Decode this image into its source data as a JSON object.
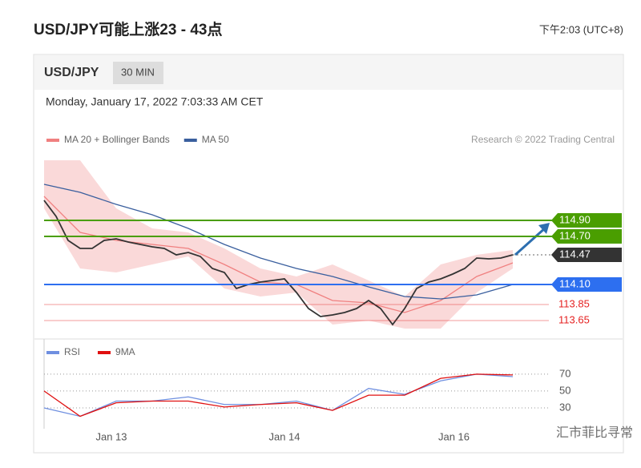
{
  "header": {
    "title": "USD/JPY可能上涨23 - 43点",
    "time": "下午2:03 (UTC+8)"
  },
  "panel": {
    "symbol": "USD/JPY",
    "interval": "30 MIN",
    "timestamp": "Monday, January 17, 2022 7:03:33 AM CET",
    "credit": "Research © 2022 Trading Central"
  },
  "watermark": "汇市菲比寻常",
  "chart_data": [
    {
      "type": "line",
      "xlim": [
        0,
        42
      ],
      "ylim": [
        113.45,
        115.75
      ],
      "price": {
        "color": "#333333",
        "x": [
          0,
          1,
          2,
          3,
          4,
          5,
          6,
          7,
          8,
          9,
          10,
          11,
          12,
          13,
          14,
          15,
          16,
          17,
          18,
          19,
          20,
          21,
          22,
          23,
          24,
          25,
          26,
          27,
          28,
          29,
          30,
          31,
          32,
          33,
          34,
          35,
          36,
          37,
          38,
          39
        ],
        "values": [
          115.15,
          114.95,
          114.65,
          114.55,
          114.55,
          114.65,
          114.67,
          114.63,
          114.6,
          114.57,
          114.55,
          114.47,
          114.5,
          114.45,
          114.3,
          114.25,
          114.05,
          114.1,
          114.13,
          114.15,
          114.17,
          114.0,
          113.8,
          113.7,
          113.72,
          113.75,
          113.8,
          113.9,
          113.8,
          113.6,
          113.8,
          114.05,
          114.13,
          114.17,
          114.23,
          114.3,
          114.43,
          114.42,
          114.43,
          114.47
        ]
      },
      "series": [
        {
          "name": "MA 20 + Bollinger Bands",
          "color": "#f08080",
          "x": [
            0,
            3,
            6,
            9,
            12,
            15,
            18,
            21,
            24,
            27,
            30,
            33,
            36,
            39
          ],
          "values": [
            115.2,
            114.75,
            114.65,
            114.6,
            114.55,
            114.35,
            114.13,
            114.1,
            113.9,
            113.87,
            113.75,
            113.9,
            114.2,
            114.37
          ],
          "upper": [
            115.65,
            115.65,
            115.05,
            114.8,
            114.75,
            114.55,
            114.3,
            114.2,
            114.35,
            114.15,
            113.95,
            114.35,
            114.47,
            114.53
          ],
          "lower": [
            115.05,
            114.3,
            114.25,
            114.35,
            114.45,
            114.05,
            113.95,
            114.0,
            113.6,
            113.65,
            113.55,
            113.55,
            114.0,
            114.3
          ]
        },
        {
          "name": "MA 50",
          "color": "#3a5f9e",
          "x": [
            0,
            3,
            6,
            9,
            12,
            15,
            18,
            21,
            24,
            27,
            30,
            33,
            36,
            39
          ],
          "values": [
            115.35,
            115.25,
            115.1,
            114.97,
            114.8,
            114.6,
            114.43,
            114.3,
            114.2,
            114.07,
            113.95,
            113.92,
            113.97,
            114.1
          ]
        }
      ],
      "levels": [
        {
          "value": 114.9,
          "label": "114.90",
          "color": "#4a9e00",
          "style": "box"
        },
        {
          "value": 114.7,
          "label": "114.70",
          "color": "#4a9e00",
          "style": "box"
        },
        {
          "value": 114.47,
          "label": "114.47",
          "color": "#333333",
          "style": "current"
        },
        {
          "value": 114.1,
          "label": "114.10",
          "color": "#2d6ff0",
          "style": "box"
        },
        {
          "value": 113.85,
          "label": "113.85",
          "color": "#e52222",
          "style": "text"
        },
        {
          "value": 113.65,
          "label": "113.65",
          "color": "#e52222",
          "style": "text"
        }
      ]
    },
    {
      "type": "line",
      "xlim": [
        0,
        42
      ],
      "ylim": [
        10,
        86
      ],
      "yticks": [
        70,
        50,
        30
      ],
      "xticks": [
        {
          "value": 5.6,
          "label": "Jan 13"
        },
        {
          "value": 20,
          "label": "Jan 14"
        },
        {
          "value": 34.1,
          "label": "Jan 16"
        }
      ],
      "series": [
        {
          "name": "RSI",
          "color": "#6f8fe0",
          "x": [
            0,
            3,
            6,
            9,
            12,
            15,
            18,
            21,
            24,
            27,
            30,
            33,
            36,
            39
          ],
          "values": [
            30,
            20,
            38,
            38,
            43,
            34,
            34,
            38,
            27,
            53,
            46,
            62,
            70,
            67
          ]
        },
        {
          "name": "9MA",
          "color": "#e01010",
          "x": [
            0,
            3,
            6,
            9,
            12,
            15,
            18,
            21,
            24,
            27,
            30,
            33,
            36,
            39
          ],
          "values": [
            50,
            20,
            36,
            38,
            38,
            31,
            34,
            36,
            27,
            45,
            45,
            65,
            70,
            69
          ]
        }
      ]
    }
  ]
}
